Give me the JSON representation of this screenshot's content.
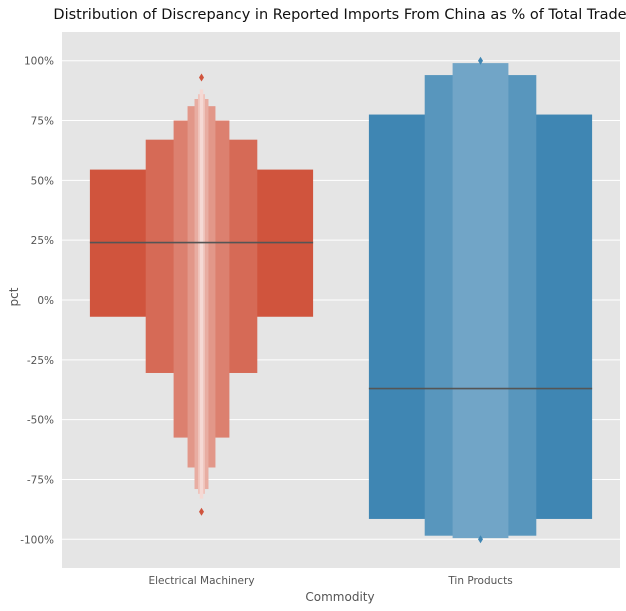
{
  "chart_data": {
    "type": "boxen",
    "title": "Distribution of Discrepancy in Reported Imports From China as % of Total Trade",
    "xlabel": "Commodity",
    "ylabel": "pct",
    "ylim": [
      -1.12,
      1.12
    ],
    "yticks": [
      1.0,
      0.75,
      0.5,
      0.25,
      0.0,
      -0.25,
      -0.5,
      -0.75,
      -1.0
    ],
    "ytick_labels": [
      "100%",
      "75%",
      "50%",
      "25%",
      "0%",
      "-25%",
      "-50%",
      "-75%",
      "-100%"
    ],
    "grid": true,
    "categories": [
      "Electrical Machinery",
      "Tin Products"
    ],
    "series": [
      {
        "category": "Electrical Machinery",
        "color": "#d0543d",
        "median": 0.24,
        "levels": [
          {
            "low": -0.07,
            "high": 0.545
          },
          {
            "low": -0.305,
            "high": 0.67
          },
          {
            "low": -0.575,
            "high": 0.75
          },
          {
            "low": -0.7,
            "high": 0.81
          },
          {
            "low": -0.79,
            "high": 0.84
          },
          {
            "low": -0.81,
            "high": 0.86
          },
          {
            "low": -0.83,
            "high": 0.88
          }
        ],
        "outliers": [
          0.93,
          -0.885
        ]
      },
      {
        "category": "Tin Products",
        "color": "#3f86b3",
        "median": -0.37,
        "levels": [
          {
            "low": -0.915,
            "high": 0.775
          },
          {
            "low": -0.985,
            "high": 0.94
          },
          {
            "low": -0.995,
            "high": 0.99
          }
        ],
        "outliers": [
          1.0,
          -1.0
        ]
      }
    ]
  }
}
